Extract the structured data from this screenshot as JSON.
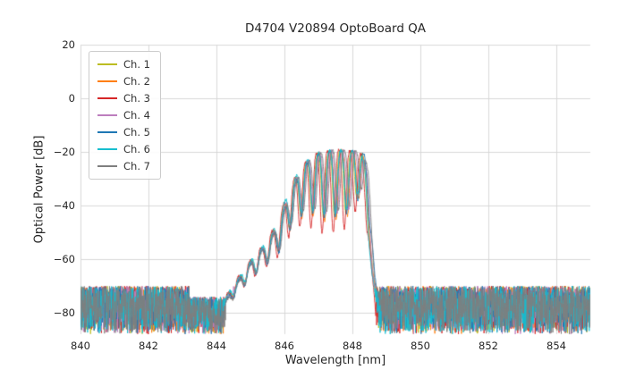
{
  "chart_data": {
    "type": "line",
    "title": "D4704 V20894 OptoBoard QA",
    "xlabel": "Wavelength [nm]",
    "ylabel": "Optical Power [dB]",
    "xlim": [
      840,
      855
    ],
    "ylim": [
      -88,
      20
    ],
    "xticks": [
      840,
      842,
      844,
      846,
      848,
      850,
      852,
      854
    ],
    "yticks": [
      20,
      0,
      -20,
      -40,
      -60,
      -80
    ],
    "grid": true,
    "grid_color": "#d8d8d8",
    "legend_position": "upper left",
    "sample_step_nm": 0.008,
    "noise": {
      "base": -88,
      "span": 18,
      "dip_range": [
        843.2,
        844.5
      ],
      "dip_span": 14
    },
    "signal_envelope": {
      "x": [
        844.2,
        844.6,
        845.0,
        845.4,
        845.8,
        846.1,
        846.4,
        846.7,
        847.0,
        847.4,
        847.8,
        848.1,
        848.3,
        848.4,
        848.5,
        848.6,
        848.8
      ],
      "peak_db": [
        -76,
        -68,
        -61,
        -55,
        -47,
        -36,
        -28,
        -23,
        -20.5,
        -19.5,
        -19.5,
        -20,
        -21,
        -28,
        -45,
        -65,
        -85
      ],
      "valley_x": [
        844.2,
        845.0,
        845.6,
        846.0,
        846.4,
        846.8,
        847.2,
        847.6,
        848.0,
        848.3,
        848.8
      ],
      "valley_depth_db": [
        3,
        6,
        9,
        13,
        17,
        22,
        26,
        26,
        23,
        12,
        5
      ],
      "mode_ref_nm": 845.0,
      "valley_sharpness": 1.6
    },
    "series": [
      {
        "name": "Ch. 1",
        "color": "#bcbd22",
        "x_shift_nm": 0.0,
        "phase": 0.0,
        "period_nm": 0.33,
        "depth_scale": 0.95,
        "seed": 101
      },
      {
        "name": "Ch. 2",
        "color": "#ff7f0e",
        "x_shift_nm": 0.015,
        "phase": 0.35,
        "period_nm": 0.336,
        "depth_scale": 1.0,
        "seed": 202
      },
      {
        "name": "Ch. 3",
        "color": "#d62728",
        "x_shift_nm": -0.03,
        "phase": -0.25,
        "period_nm": 0.327,
        "depth_scale": 1.18,
        "seed": 303
      },
      {
        "name": "Ch. 4",
        "color": "#bd7ebe",
        "x_shift_nm": 0.03,
        "phase": 0.6,
        "period_nm": 0.34,
        "depth_scale": 0.9,
        "seed": 404
      },
      {
        "name": "Ch. 5",
        "color": "#1f77b4",
        "x_shift_nm": 0.05,
        "phase": 0.9,
        "period_nm": 0.333,
        "depth_scale": 0.95,
        "seed": 505
      },
      {
        "name": "Ch. 6",
        "color": "#17becf",
        "x_shift_nm": -0.015,
        "phase": -0.55,
        "period_nm": 0.331,
        "depth_scale": 0.9,
        "seed": 606
      },
      {
        "name": "Ch. 7",
        "color": "#7f7f7f",
        "x_shift_nm": 0.07,
        "phase": 1.2,
        "period_nm": 0.344,
        "depth_scale": 0.85,
        "seed": 707
      }
    ]
  }
}
